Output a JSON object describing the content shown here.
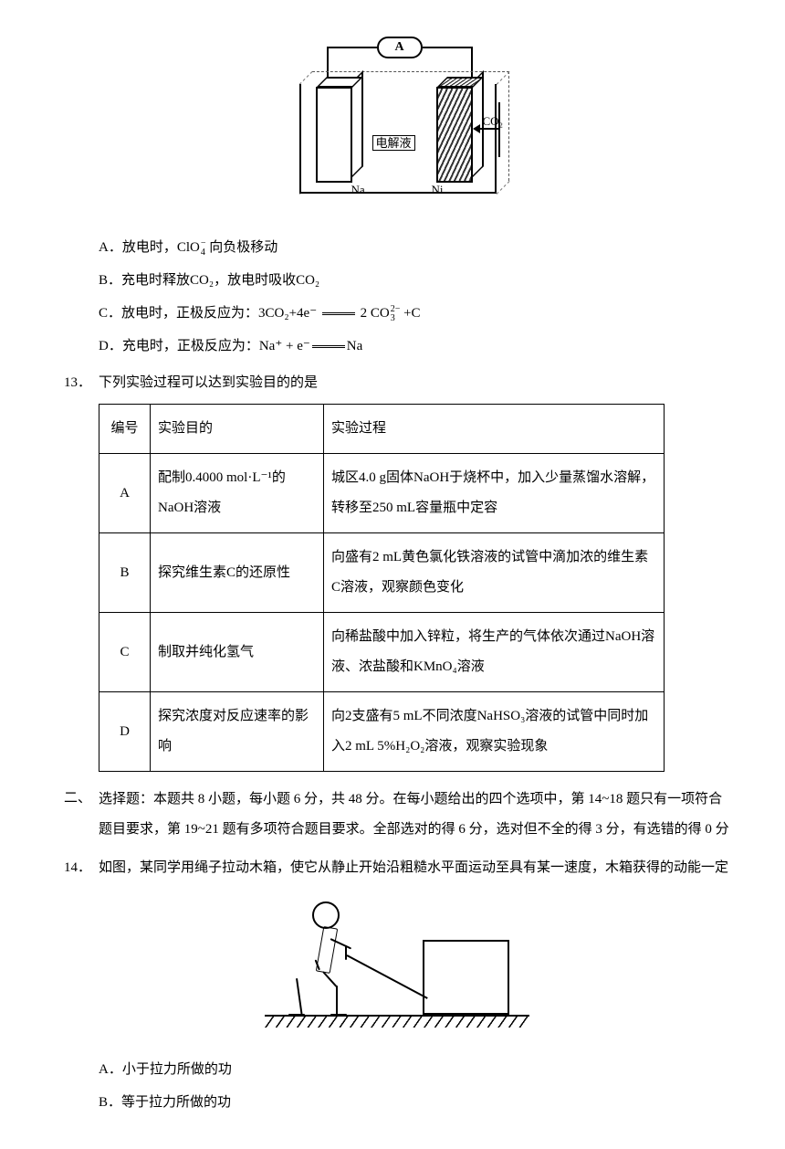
{
  "figure1": {
    "ammeter": "A",
    "electrolyte_label": "电解液",
    "co2_label": "CO₂",
    "na_label": "Na",
    "ni_label": "Ni"
  },
  "q12_options": {
    "A": "A．放电时，ClO",
    "A_tail": " 向负极移动",
    "A_sup": "−",
    "A_sub": "4",
    "B": "B．充电时释放CO₂，放电时吸收CO₂",
    "C_pre": "C．放电时，正极反应为：3CO₂+4e⁻ ",
    "C_post": " 2 CO",
    "C_sup": "2−",
    "C_sub": "3",
    "C_tail": " +C",
    "D_pre": "D．充电时，正极反应为：Na⁺ + e⁻",
    "D_post": "Na"
  },
  "q13": {
    "num": "13．",
    "stem": "下列实验过程可以达到实验目的的是",
    "headers": {
      "id": "编号",
      "purpose": "实验目的",
      "process": "实验过程"
    },
    "rows": [
      {
        "id": "A",
        "purpose": "配制0.4000 mol·L⁻¹的NaOH溶液",
        "process": "城区4.0 g固体NaOH于烧杯中，加入少量蒸馏水溶解，转移至250 mL容量瓶中定容"
      },
      {
        "id": "B",
        "purpose": "探究维生素C的还原性",
        "process": "向盛有2 mL黄色氯化铁溶液的试管中滴加浓的维生素C溶液，观察颜色变化"
      },
      {
        "id": "C",
        "purpose": "制取并纯化氢气",
        "process": "向稀盐酸中加入锌粒，将生产的气体依次通过NaOH溶液、浓盐酸和KMnO₄溶液"
      },
      {
        "id": "D",
        "purpose": "探究浓度对反应速率的影响",
        "process": "向2支盛有5 mL不同浓度NaHSO₃溶液的试管中同时加入2 mL 5%H₂O₂溶液，观察实验现象"
      }
    ]
  },
  "section2": {
    "num": "二、",
    "text": "选择题：本题共 8 小题，每小题 6 分，共 48 分。在每小题给出的四个选项中，第 14~18 题只有一项符合题目要求，第 19~21 题有多项符合题目要求。全部选对的得 6 分，选对但不全的得 3 分，有选错的得 0 分"
  },
  "q14": {
    "num": "14．",
    "stem": "如图，某同学用绳子拉动木箱，使它从静止开始沿粗糙水平面运动至具有某一速度，木箱获得的动能一定",
    "options": {
      "A": "A．小于拉力所做的功",
      "B": "B．等于拉力所做的功"
    }
  }
}
